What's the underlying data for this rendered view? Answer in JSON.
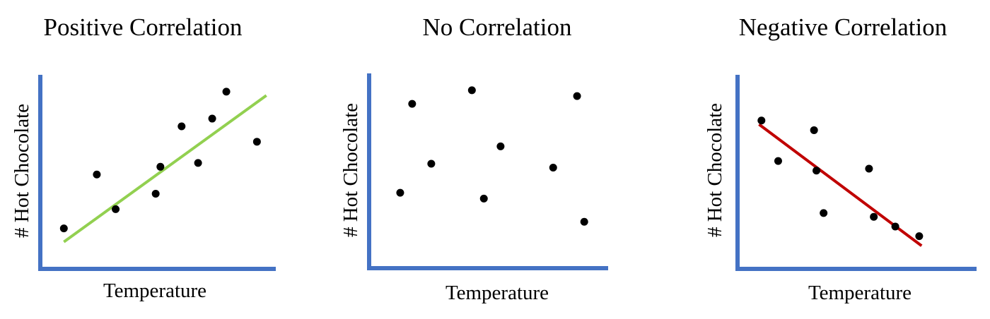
{
  "colors": {
    "axis": "#4472C4",
    "points": "#000000",
    "positive_trend": "#92D050",
    "negative_trend": "#C00000"
  },
  "chart_data": [
    {
      "type": "scatter",
      "title": "Positive Correlation",
      "xlabel": "Temperature",
      "ylabel": "# Hot Chocolate",
      "xlim": [
        0,
        10
      ],
      "ylim": [
        0,
        10
      ],
      "grid": false,
      "points": [
        {
          "x": 1.0,
          "y": 2.1
        },
        {
          "x": 2.4,
          "y": 4.9
        },
        {
          "x": 3.2,
          "y": 3.1
        },
        {
          "x": 4.9,
          "y": 3.9
        },
        {
          "x": 5.1,
          "y": 5.3
        },
        {
          "x": 6.0,
          "y": 7.4
        },
        {
          "x": 6.7,
          "y": 5.5
        },
        {
          "x": 7.3,
          "y": 7.8
        },
        {
          "x": 7.9,
          "y": 9.2
        },
        {
          "x": 9.2,
          "y": 6.6
        }
      ],
      "trendline": {
        "color": "#92D050",
        "x": [
          1.0,
          9.6
        ],
        "y": [
          1.4,
          9.0
        ]
      }
    },
    {
      "type": "scatter",
      "title": "No Correlation",
      "xlabel": "Temperature",
      "ylabel": "# Hot Chocolate",
      "xlim": [
        0,
        10
      ],
      "ylim": [
        0,
        10
      ],
      "grid": false,
      "points": [
        {
          "x": 1.3,
          "y": 3.9
        },
        {
          "x": 1.8,
          "y": 8.5
        },
        {
          "x": 2.6,
          "y": 5.4
        },
        {
          "x": 4.3,
          "y": 9.2
        },
        {
          "x": 4.8,
          "y": 3.6
        },
        {
          "x": 5.5,
          "y": 6.3
        },
        {
          "x": 7.7,
          "y": 5.2
        },
        {
          "x": 8.7,
          "y": 8.9
        },
        {
          "x": 9.0,
          "y": 2.4
        }
      ]
    },
    {
      "type": "scatter",
      "title": "Negative Correlation",
      "xlabel": "Temperature",
      "ylabel": "# Hot Chocolate",
      "xlim": [
        0,
        10
      ],
      "ylim": [
        0,
        10
      ],
      "grid": false,
      "points": [
        {
          "x": 1.0,
          "y": 7.7
        },
        {
          "x": 1.7,
          "y": 5.6
        },
        {
          "x": 3.2,
          "y": 7.2
        },
        {
          "x": 3.3,
          "y": 5.1
        },
        {
          "x": 3.6,
          "y": 2.9
        },
        {
          "x": 5.5,
          "y": 5.2
        },
        {
          "x": 5.7,
          "y": 2.7
        },
        {
          "x": 6.6,
          "y": 2.2
        },
        {
          "x": 7.6,
          "y": 1.7
        }
      ],
      "trendline": {
        "color": "#C00000",
        "x": [
          0.9,
          7.7
        ],
        "y": [
          7.5,
          1.2
        ]
      }
    }
  ]
}
